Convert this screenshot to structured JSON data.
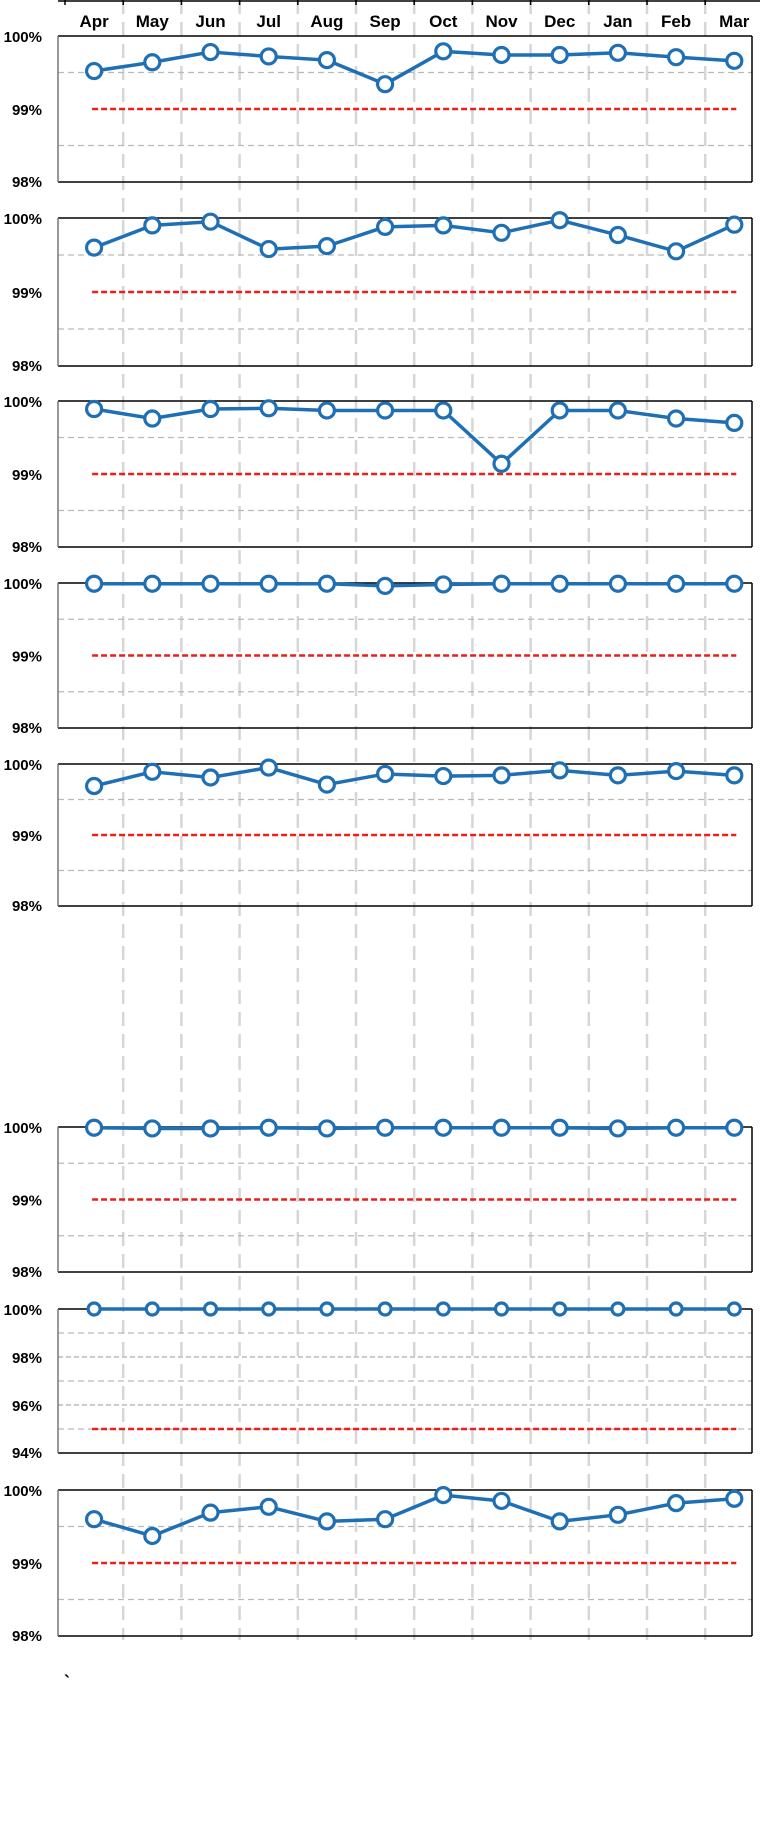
{
  "months": [
    "Apr",
    "May",
    "Jun",
    "Jul",
    "Aug",
    "Sep",
    "Oct",
    "Nov",
    "Dec",
    "Jan",
    "Feb",
    "Mar"
  ],
  "stray_mark": "`",
  "colors": {
    "series": "#1f6fb5",
    "target": "#e8201c",
    "grid": "#b9b9b9",
    "month_grid": "#d6d6d6",
    "frame": "#000000"
  },
  "chart_data": [
    {
      "type": "line",
      "ylim": [
        98,
        100
      ],
      "yticks": [
        "98%",
        "99%",
        "100%"
      ],
      "target": 99,
      "values": [
        99.52,
        99.64,
        99.78,
        99.72,
        99.67,
        99.34,
        99.79,
        99.74,
        99.74,
        99.77,
        99.71,
        99.66
      ]
    },
    {
      "type": "line",
      "ylim": [
        98,
        100
      ],
      "yticks": [
        "98%",
        "99%",
        "100%"
      ],
      "target": 99,
      "values": [
        99.6,
        99.9,
        99.95,
        99.58,
        99.62,
        99.88,
        99.9,
        99.8,
        99.97,
        99.77,
        99.55,
        99.91
      ]
    },
    {
      "type": "line",
      "ylim": [
        98,
        100
      ],
      "yticks": [
        "98%",
        "99%",
        "100%"
      ],
      "target": 99,
      "values": [
        99.89,
        99.76,
        99.89,
        99.9,
        99.87,
        99.87,
        99.87,
        99.14,
        99.87,
        99.87,
        99.76,
        99.7
      ]
    },
    {
      "type": "line",
      "ylim": [
        98,
        100
      ],
      "yticks": [
        "98%",
        "99%",
        "100%"
      ],
      "target": 99,
      "values": [
        99.99,
        99.99,
        99.99,
        99.99,
        99.99,
        99.96,
        99.98,
        99.99,
        99.99,
        99.99,
        99.99,
        99.99
      ]
    },
    {
      "type": "line",
      "ylim": [
        98,
        100
      ],
      "yticks": [
        "98%",
        "99%",
        "100%"
      ],
      "target": 99,
      "values": [
        99.69,
        99.89,
        99.81,
        99.95,
        99.71,
        99.86,
        99.83,
        99.84,
        99.91,
        99.84,
        99.9,
        99.84
      ]
    },
    {
      "type": "line",
      "ylim": [
        98,
        100
      ],
      "yticks": [
        "98%",
        "99%",
        "100%"
      ],
      "target": 99,
      "values": [
        99.99,
        99.98,
        99.98,
        99.99,
        99.98,
        99.99,
        99.99,
        99.99,
        99.99,
        99.98,
        99.99,
        99.99
      ]
    },
    {
      "type": "line",
      "ylim": [
        94,
        100
      ],
      "yticks": [
        "94%",
        "96%",
        "98%",
        "100%"
      ],
      "target": 95,
      "values": [
        100,
        100,
        100,
        100,
        100,
        100,
        100,
        100,
        100,
        100,
        100,
        100
      ]
    },
    {
      "type": "line",
      "ylim": [
        98,
        100
      ],
      "yticks": [
        "98%",
        "99%",
        "100%"
      ],
      "target": 99,
      "values": [
        99.6,
        99.37,
        99.69,
        99.77,
        99.57,
        99.6,
        99.93,
        99.85,
        99.57,
        99.66,
        99.82,
        99.88
      ]
    }
  ]
}
